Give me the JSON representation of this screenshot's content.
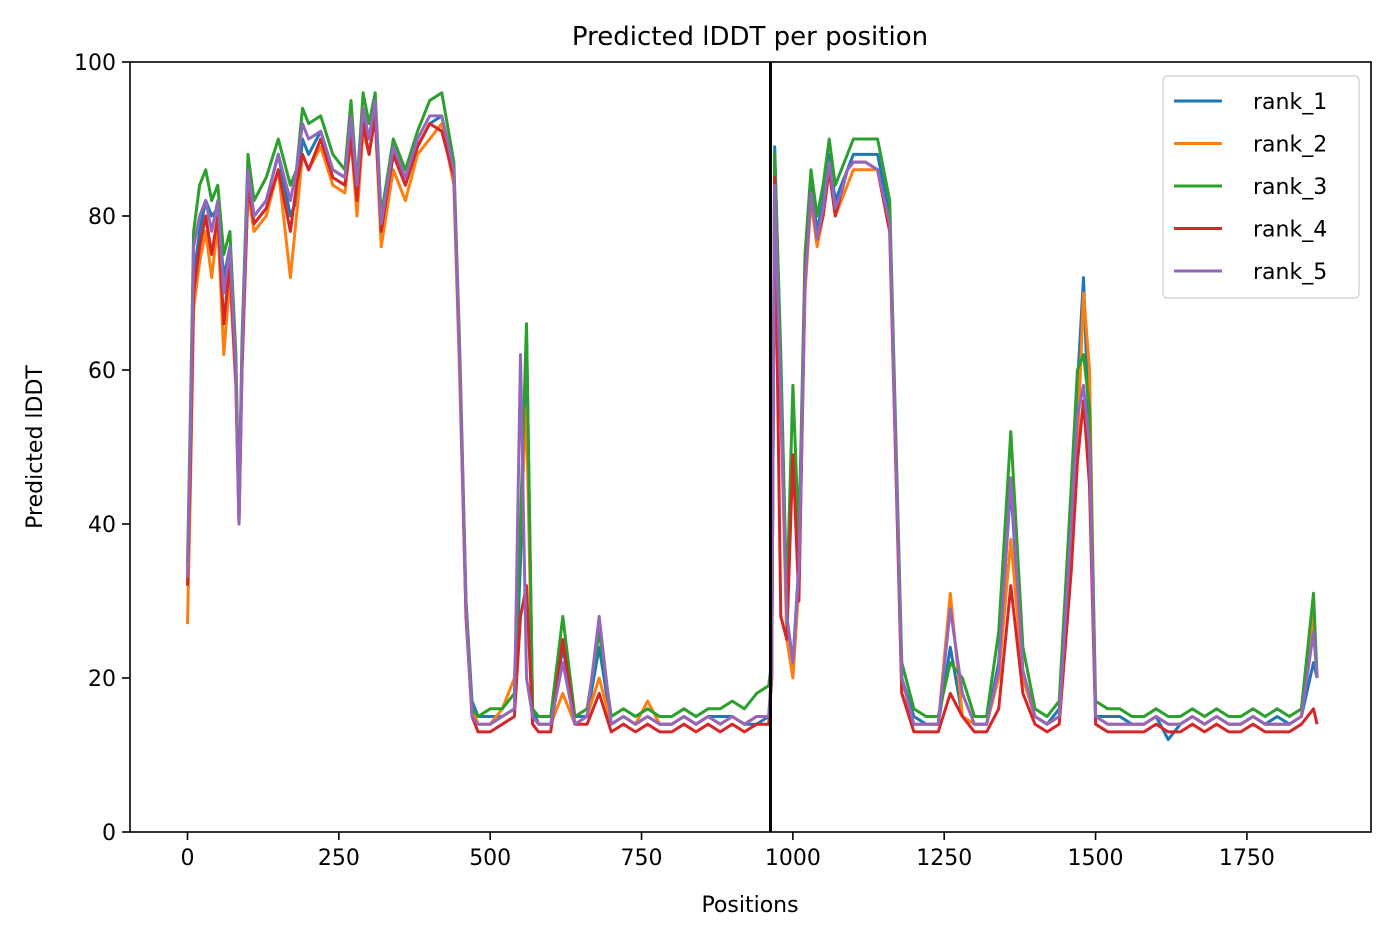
{
  "chart_data": {
    "type": "line",
    "title": "Predicted lDDT per position",
    "xlabel": "Positions",
    "ylabel": "Predicted lDDT",
    "xlim": [
      -95,
      1955
    ],
    "ylim": [
      0,
      100
    ],
    "xticks": [
      0,
      250,
      500,
      750,
      1000,
      1250,
      1500,
      1750
    ],
    "yticks": [
      0,
      20,
      40,
      60,
      80,
      100
    ],
    "grid": false,
    "legend_position": "top-right",
    "vline": 963,
    "series": [
      {
        "name": "rank_1",
        "color": "#1f77b4",
        "x": [
          0,
          5,
          10,
          20,
          30,
          40,
          50,
          60,
          70,
          80,
          85,
          90,
          100,
          110,
          130,
          150,
          170,
          180,
          190,
          200,
          220,
          240,
          260,
          270,
          280,
          290,
          300,
          310,
          320,
          340,
          360,
          380,
          400,
          420,
          440,
          450,
          460,
          470,
          480,
          500,
          520,
          540,
          550,
          560,
          570,
          580,
          600,
          620,
          640,
          660,
          680,
          700,
          720,
          740,
          760,
          780,
          800,
          820,
          840,
          860,
          880,
          900,
          920,
          940,
          960,
          965,
          970,
          980,
          990,
          1000,
          1010,
          1020,
          1030,
          1040,
          1050,
          1060,
          1070,
          1080,
          1090,
          1100,
          1120,
          1140,
          1160,
          1180,
          1200,
          1220,
          1240,
          1260,
          1280,
          1300,
          1320,
          1340,
          1360,
          1380,
          1400,
          1420,
          1440,
          1460,
          1470,
          1480,
          1490,
          1500,
          1520,
          1540,
          1560,
          1580,
          1600,
          1620,
          1640,
          1660,
          1680,
          1700,
          1720,
          1740,
          1760,
          1780,
          1800,
          1820,
          1840,
          1860,
          1866
        ],
        "y": [
          33,
          50,
          72,
          78,
          82,
          80,
          81,
          72,
          76,
          60,
          41,
          62,
          86,
          80,
          82,
          88,
          80,
          82,
          90,
          88,
          91,
          86,
          85,
          92,
          82,
          93,
          90,
          95,
          78,
          88,
          84,
          89,
          92,
          93,
          85,
          60,
          30,
          17,
          15,
          15,
          15,
          16,
          35,
          65,
          16,
          14,
          14,
          24,
          15,
          15,
          24,
          14,
          15,
          14,
          15,
          14,
          14,
          15,
          14,
          15,
          15,
          15,
          14,
          14,
          15,
          20,
          89,
          60,
          28,
          22,
          35,
          72,
          85,
          78,
          82,
          88,
          82,
          84,
          86,
          88,
          88,
          88,
          80,
          20,
          15,
          14,
          14,
          24,
          15,
          14,
          14,
          22,
          45,
          20,
          15,
          14,
          16,
          42,
          58,
          72,
          50,
          15,
          15,
          15,
          14,
          14,
          15,
          12,
          14,
          15,
          14,
          15,
          14,
          14,
          15,
          14,
          15,
          14,
          15,
          22,
          20
        ]
      },
      {
        "name": "rank_2",
        "color": "#ff7f0e",
        "x": [
          0,
          5,
          10,
          20,
          30,
          40,
          50,
          60,
          70,
          80,
          85,
          90,
          100,
          110,
          130,
          150,
          170,
          180,
          190,
          200,
          220,
          240,
          260,
          270,
          280,
          290,
          300,
          310,
          320,
          340,
          360,
          380,
          400,
          420,
          440,
          450,
          460,
          470,
          480,
          500,
          520,
          540,
          550,
          560,
          570,
          580,
          600,
          620,
          640,
          660,
          680,
          700,
          720,
          740,
          760,
          780,
          800,
          820,
          840,
          860,
          880,
          900,
          920,
          940,
          960,
          965,
          970,
          980,
          990,
          1000,
          1010,
          1020,
          1030,
          1040,
          1050,
          1060,
          1070,
          1080,
          1090,
          1100,
          1120,
          1140,
          1160,
          1180,
          1200,
          1220,
          1240,
          1260,
          1280,
          1300,
          1320,
          1340,
          1360,
          1380,
          1400,
          1420,
          1440,
          1460,
          1470,
          1480,
          1490,
          1500,
          1520,
          1540,
          1560,
          1580,
          1600,
          1620,
          1640,
          1660,
          1680,
          1700,
          1720,
          1740,
          1760,
          1780,
          1800,
          1820,
          1840,
          1860,
          1866
        ],
        "y": [
          27,
          45,
          68,
          74,
          78,
          72,
          79,
          62,
          72,
          58,
          40,
          60,
          83,
          78,
          80,
          86,
          72,
          80,
          88,
          86,
          89,
          84,
          83,
          90,
          80,
          91,
          88,
          93,
          76,
          86,
          82,
          88,
          90,
          92,
          84,
          58,
          28,
          16,
          14,
          14,
          16,
          20,
          40,
          55,
          15,
          14,
          14,
          18,
          14,
          15,
          20,
          14,
          15,
          14,
          17,
          14,
          14,
          15,
          14,
          15,
          14,
          15,
          14,
          15,
          15,
          20,
          86,
          55,
          25,
          20,
          32,
          70,
          82,
          76,
          80,
          86,
          80,
          82,
          84,
          86,
          86,
          86,
          78,
          18,
          14,
          14,
          14,
          31,
          15,
          14,
          14,
          20,
          38,
          20,
          15,
          14,
          15,
          35,
          50,
          70,
          60,
          15,
          14,
          14,
          14,
          14,
          15,
          14,
          14,
          15,
          14,
          15,
          14,
          14,
          15,
          14,
          14,
          14,
          15,
          28,
          20
        ]
      },
      {
        "name": "rank_3",
        "color": "#2ca02c",
        "x": [
          0,
          5,
          10,
          20,
          30,
          40,
          50,
          60,
          70,
          80,
          85,
          90,
          100,
          110,
          130,
          150,
          170,
          180,
          190,
          200,
          220,
          240,
          260,
          270,
          280,
          290,
          300,
          310,
          320,
          340,
          360,
          380,
          400,
          420,
          440,
          450,
          460,
          470,
          480,
          500,
          520,
          540,
          550,
          560,
          570,
          580,
          600,
          620,
          640,
          660,
          680,
          700,
          720,
          740,
          760,
          780,
          800,
          820,
          840,
          860,
          880,
          900,
          920,
          940,
          960,
          965,
          970,
          980,
          990,
          1000,
          1010,
          1020,
          1030,
          1040,
          1050,
          1060,
          1070,
          1080,
          1090,
          1100,
          1120,
          1140,
          1160,
          1180,
          1200,
          1220,
          1240,
          1260,
          1280,
          1300,
          1320,
          1340,
          1360,
          1380,
          1400,
          1420,
          1440,
          1460,
          1470,
          1480,
          1490,
          1500,
          1520,
          1540,
          1560,
          1580,
          1600,
          1620,
          1640,
          1660,
          1680,
          1700,
          1720,
          1740,
          1760,
          1780,
          1800,
          1820,
          1840,
          1860,
          1866
        ],
        "y": [
          35,
          55,
          78,
          84,
          86,
          82,
          84,
          75,
          78,
          62,
          42,
          64,
          88,
          82,
          85,
          90,
          84,
          86,
          94,
          92,
          93,
          88,
          86,
          95,
          84,
          96,
          92,
          96,
          80,
          90,
          86,
          91,
          95,
          96,
          87,
          62,
          30,
          16,
          15,
          16,
          16,
          18,
          40,
          66,
          16,
          15,
          15,
          28,
          15,
          16,
          26,
          15,
          16,
          15,
          16,
          15,
          15,
          16,
          15,
          16,
          16,
          17,
          16,
          18,
          19,
          22,
          88,
          62,
          30,
          58,
          38,
          75,
          86,
          80,
          84,
          90,
          84,
          86,
          88,
          90,
          90,
          90,
          82,
          22,
          16,
          15,
          15,
          22,
          20,
          15,
          15,
          26,
          52,
          24,
          16,
          15,
          17,
          45,
          60,
          62,
          55,
          17,
          16,
          16,
          15,
          15,
          16,
          15,
          15,
          16,
          15,
          16,
          15,
          15,
          16,
          15,
          16,
          15,
          16,
          31,
          20
        ]
      },
      {
        "name": "rank_4",
        "color": "#d62728",
        "x": [
          0,
          5,
          10,
          20,
          30,
          40,
          50,
          60,
          70,
          80,
          85,
          90,
          100,
          110,
          130,
          150,
          170,
          180,
          190,
          200,
          220,
          240,
          260,
          270,
          280,
          290,
          300,
          310,
          320,
          340,
          360,
          380,
          400,
          420,
          440,
          450,
          460,
          470,
          480,
          500,
          520,
          540,
          550,
          560,
          570,
          580,
          600,
          620,
          640,
          660,
          680,
          700,
          720,
          740,
          760,
          780,
          800,
          820,
          840,
          860,
          880,
          900,
          920,
          940,
          960,
          965,
          970,
          980,
          990,
          1000,
          1010,
          1020,
          1030,
          1040,
          1050,
          1060,
          1070,
          1080,
          1090,
          1100,
          1120,
          1140,
          1160,
          1180,
          1200,
          1220,
          1240,
          1260,
          1280,
          1300,
          1320,
          1340,
          1360,
          1380,
          1400,
          1420,
          1440,
          1460,
          1470,
          1480,
          1490,
          1500,
          1520,
          1540,
          1560,
          1580,
          1600,
          1620,
          1640,
          1660,
          1680,
          1700,
          1720,
          1740,
          1760,
          1780,
          1800,
          1820,
          1840,
          1860,
          1866
        ],
        "y": [
          32,
          48,
          70,
          76,
          80,
          75,
          80,
          66,
          74,
          58,
          40,
          60,
          84,
          79,
          81,
          86,
          78,
          84,
          88,
          86,
          90,
          85,
          84,
          90,
          82,
          92,
          88,
          93,
          78,
          88,
          84,
          89,
          92,
          91,
          85,
          60,
          28,
          15,
          13,
          13,
          14,
          15,
          28,
          32,
          14,
          13,
          13,
          25,
          14,
          14,
          18,
          13,
          14,
          13,
          14,
          13,
          13,
          14,
          13,
          14,
          13,
          14,
          13,
          14,
          14,
          20,
          85,
          28,
          25,
          49,
          30,
          72,
          83,
          77,
          80,
          86,
          80,
          83,
          86,
          87,
          87,
          86,
          78,
          18,
          13,
          13,
          13,
          18,
          15,
          13,
          13,
          16,
          32,
          18,
          14,
          13,
          14,
          34,
          48,
          56,
          45,
          14,
          13,
          13,
          13,
          13,
          14,
          13,
          13,
          14,
          13,
          14,
          13,
          13,
          14,
          13,
          13,
          13,
          14,
          16,
          14
        ]
      },
      {
        "name": "rank_5",
        "color": "#9467bd",
        "x": [
          0,
          5,
          10,
          20,
          30,
          40,
          50,
          60,
          70,
          80,
          85,
          90,
          100,
          110,
          130,
          150,
          170,
          180,
          190,
          200,
          220,
          240,
          260,
          270,
          280,
          290,
          300,
          310,
          320,
          340,
          360,
          380,
          400,
          420,
          440,
          450,
          460,
          470,
          480,
          500,
          520,
          540,
          550,
          560,
          570,
          580,
          600,
          620,
          640,
          660,
          680,
          700,
          720,
          740,
          760,
          780,
          800,
          820,
          840,
          860,
          880,
          900,
          920,
          940,
          960,
          965,
          970,
          980,
          990,
          1000,
          1010,
          1020,
          1030,
          1040,
          1050,
          1060,
          1070,
          1080,
          1090,
          1100,
          1120,
          1140,
          1160,
          1180,
          1200,
          1220,
          1240,
          1260,
          1280,
          1300,
          1320,
          1340,
          1360,
          1380,
          1400,
          1420,
          1440,
          1460,
          1470,
          1480,
          1490,
          1500,
          1520,
          1540,
          1560,
          1580,
          1600,
          1620,
          1640,
          1660,
          1680,
          1700,
          1720,
          1740,
          1760,
          1780,
          1800,
          1820,
          1840,
          1860,
          1866
        ],
        "y": [
          33,
          52,
          76,
          80,
          82,
          78,
          82,
          70,
          76,
          60,
          40,
          62,
          86,
          80,
          82,
          88,
          82,
          86,
          92,
          90,
          91,
          86,
          85,
          93,
          84,
          94,
          90,
          95,
          79,
          89,
          85,
          90,
          93,
          93,
          86,
          60,
          29,
          15,
          14,
          14,
          15,
          16,
          62,
          20,
          15,
          14,
          14,
          22,
          14,
          15,
          28,
          14,
          15,
          14,
          15,
          14,
          14,
          15,
          14,
          15,
          14,
          15,
          14,
          15,
          15,
          21,
          84,
          56,
          28,
          22,
          34,
          71,
          83,
          77,
          81,
          87,
          81,
          83,
          86,
          87,
          87,
          86,
          79,
          20,
          14,
          14,
          14,
          29,
          18,
          14,
          14,
          21,
          46,
          21,
          15,
          14,
          15,
          40,
          54,
          58,
          50,
          15,
          14,
          14,
          14,
          14,
          15,
          14,
          14,
          15,
          14,
          15,
          14,
          14,
          15,
          14,
          14,
          14,
          15,
          26,
          20
        ]
      }
    ]
  }
}
